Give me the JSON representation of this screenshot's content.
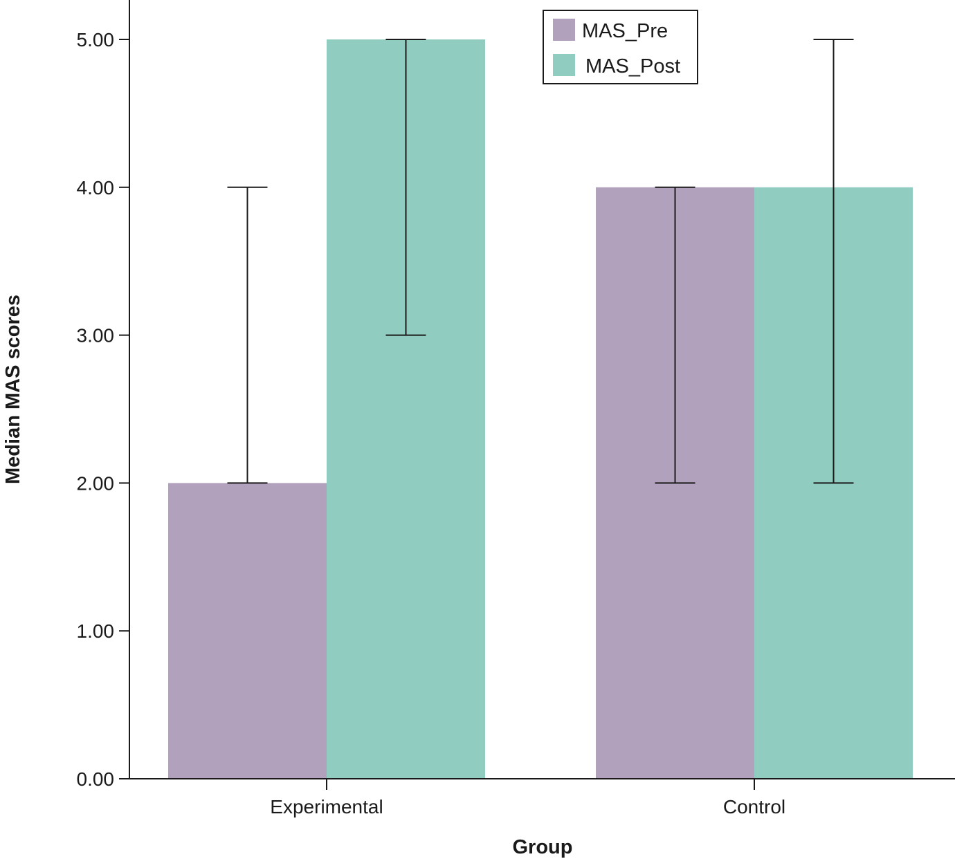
{
  "chart_data": {
    "type": "bar",
    "categories": [
      "Experimental",
      "Control"
    ],
    "series": [
      {
        "name": "MAS_Pre",
        "color": "#b2a1bd",
        "values": [
          2.0,
          4.0
        ],
        "error_low": [
          2.0,
          2.0
        ],
        "error_high": [
          4.0,
          4.0
        ]
      },
      {
        "name": "MAS_Post",
        "color": "#90ccc0",
        "values": [
          5.0,
          4.0
        ],
        "error_low": [
          3.0,
          2.0
        ],
        "error_high": [
          5.0,
          5.0
        ]
      }
    ],
    "xlabel": "Group",
    "ylabel": "Median MAS scores",
    "ylim": [
      0,
      5
    ],
    "yticks": [
      "0.00",
      "1.00",
      "2.00",
      "3.00",
      "4.00",
      "5.00"
    ],
    "grid": false,
    "legend": "top-center"
  }
}
